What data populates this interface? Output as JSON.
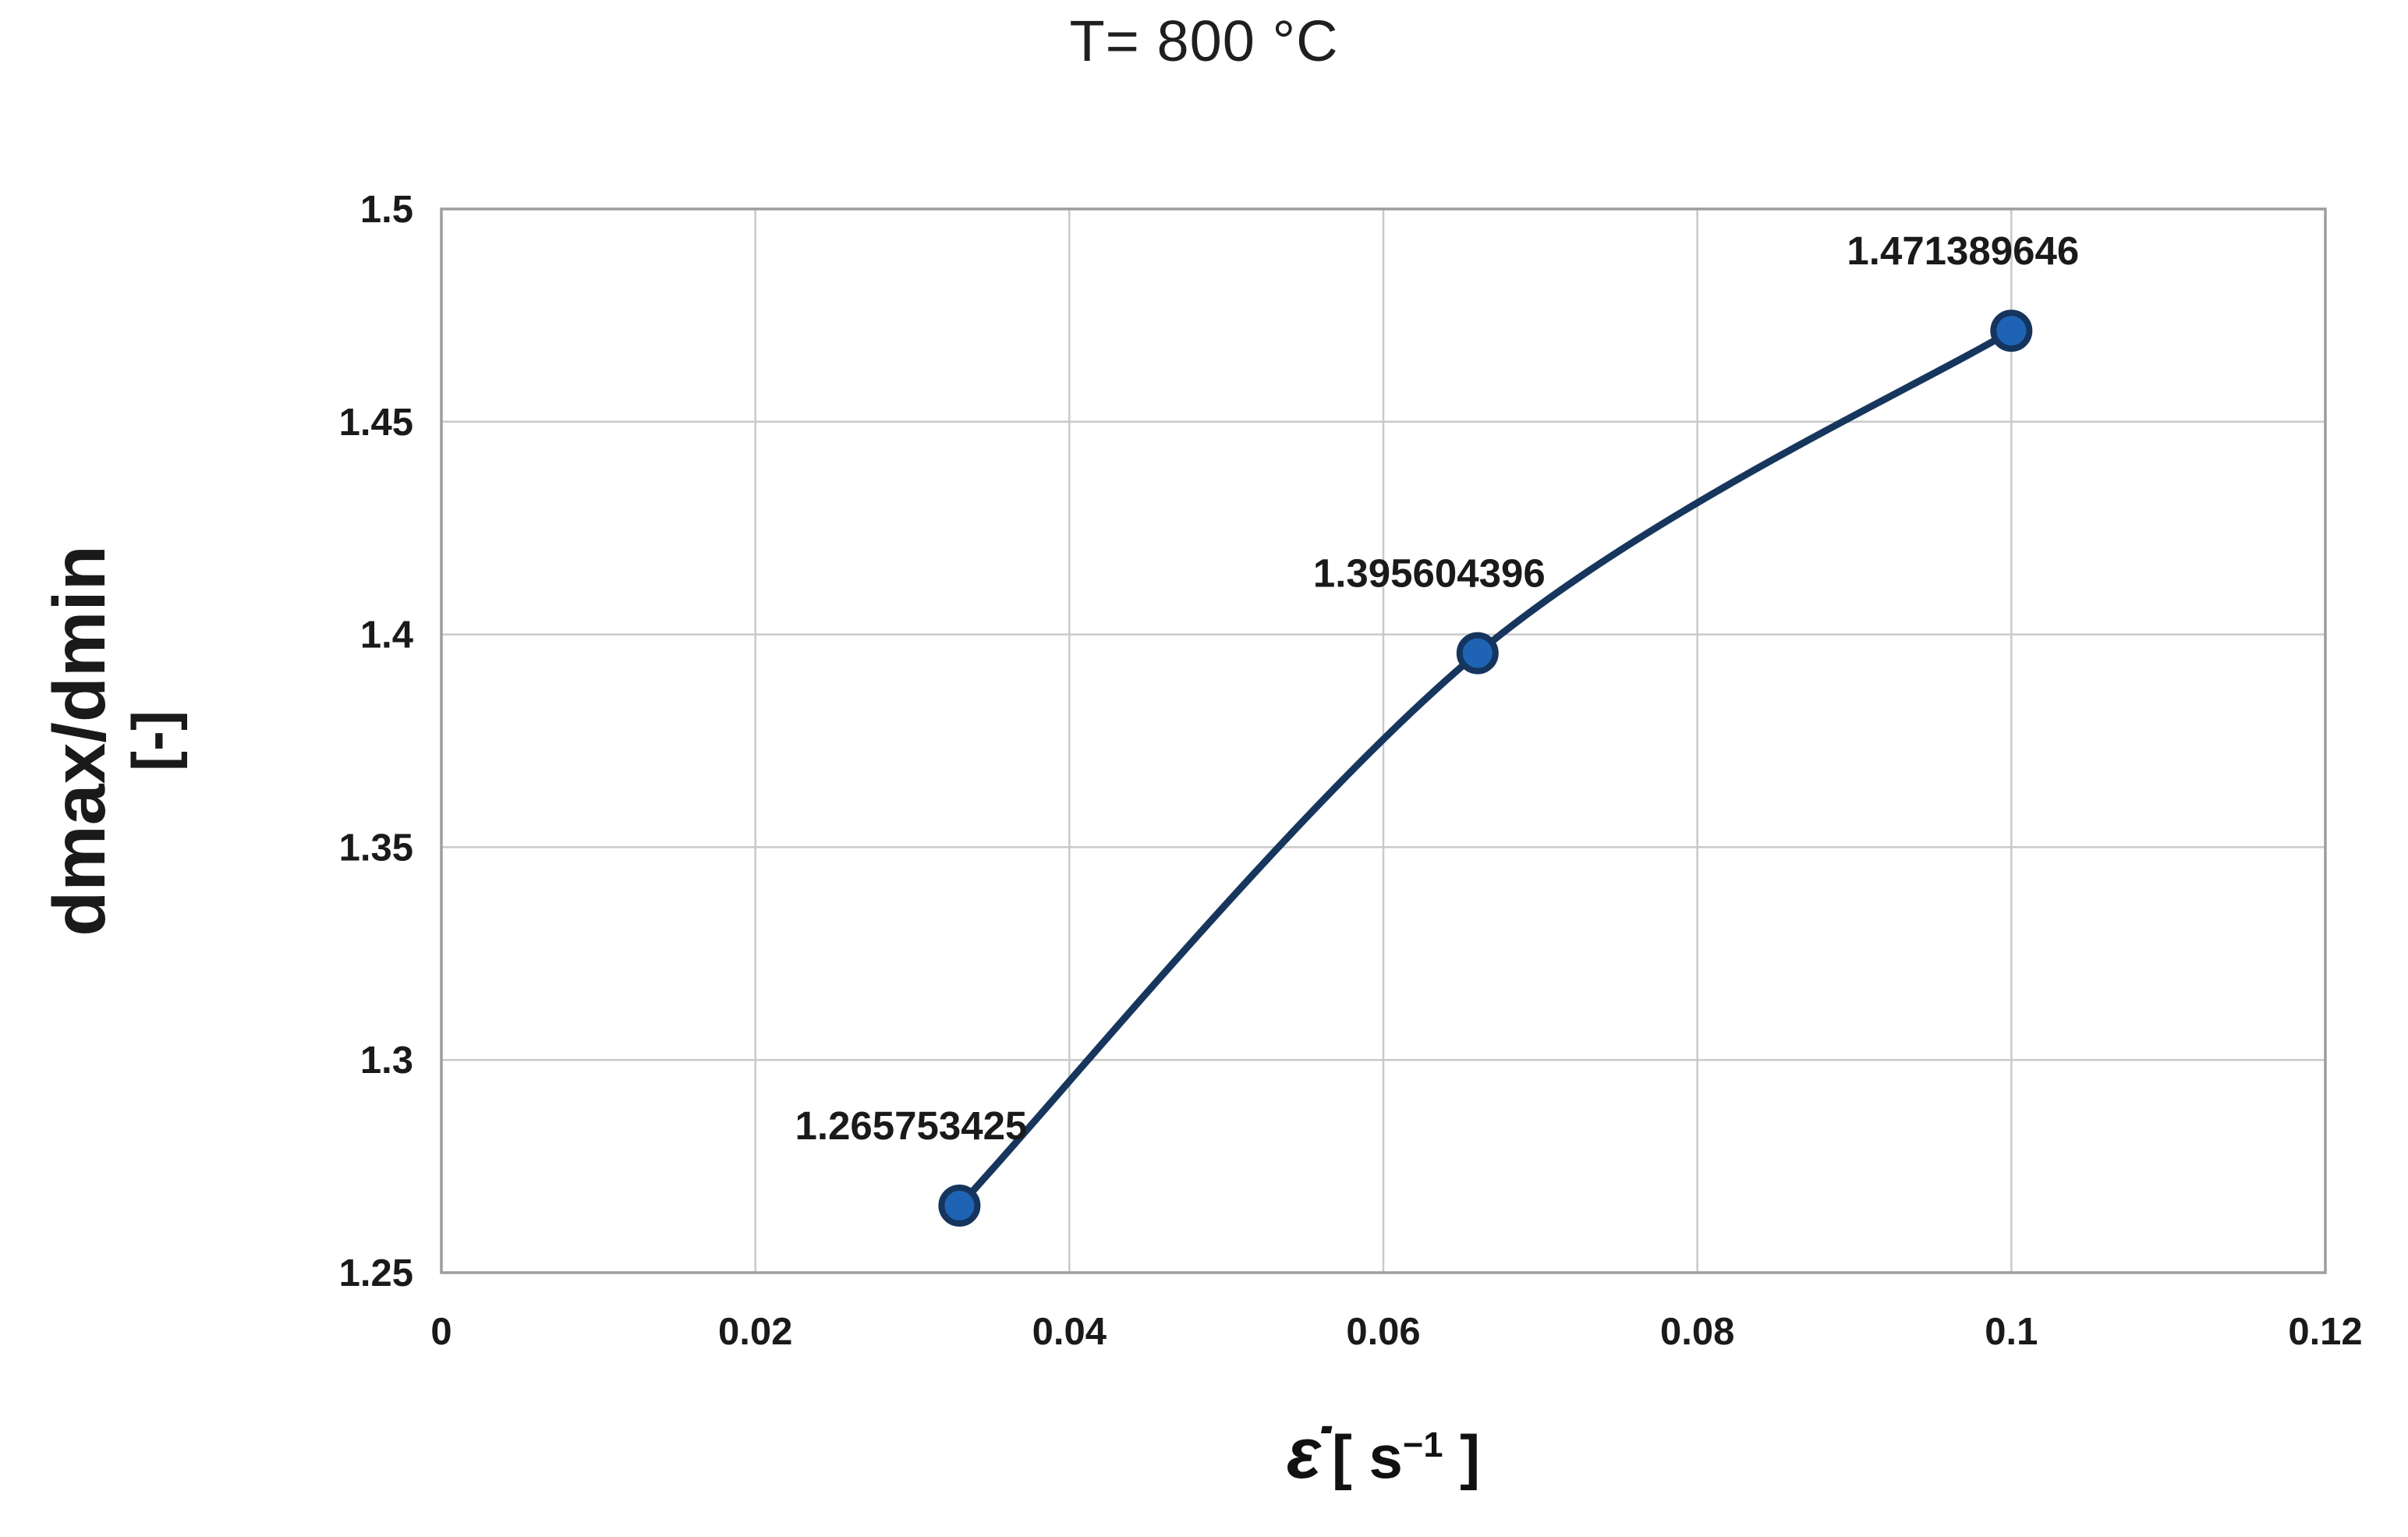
{
  "title": "T= 800 °C",
  "y_axis": {
    "title": "dmax/dmin",
    "unit": "[-]"
  },
  "x_axis": {
    "symbol": "ε̇",
    "unit_prefix": "[ s",
    "unit_sup": "−1",
    "unit_suffix": " ]"
  },
  "chart_data": {
    "type": "line",
    "title": "T= 800 °C",
    "xlabel": "ε̇ [ s⁻¹ ]",
    "ylabel": "dmax/dmin [-]",
    "x": [
      0.033,
      0.066,
      0.1
    ],
    "y": [
      1.265753425,
      1.395604396,
      1.471389646
    ],
    "point_labels": [
      "1.265753425",
      "1.395604396",
      "1.471389646"
    ],
    "xlim": [
      0,
      0.12
    ],
    "ylim": [
      1.25,
      1.5
    ],
    "xticks": {
      "values": [
        0,
        0.02,
        0.04,
        0.06,
        0.08,
        0.1,
        0.12
      ],
      "labels": [
        "0",
        "0.02",
        "0.04",
        "0.06",
        "0.08",
        "0.1",
        "0.12"
      ]
    },
    "yticks": {
      "values": [
        1.25,
        1.3,
        1.35,
        1.4,
        1.45,
        1.5
      ],
      "labels": [
        "1.25",
        "1.3",
        "1.35",
        "1.4",
        "1.45",
        "1.5"
      ]
    },
    "grid": true,
    "legend": "none",
    "colors": {
      "line": "#17365d",
      "marker_fill": "#1f64b4",
      "marker_stroke": "#15355e",
      "grid": "#c9c9c9",
      "border": "#9d9d9d",
      "text": "#1a1a1a"
    }
  }
}
